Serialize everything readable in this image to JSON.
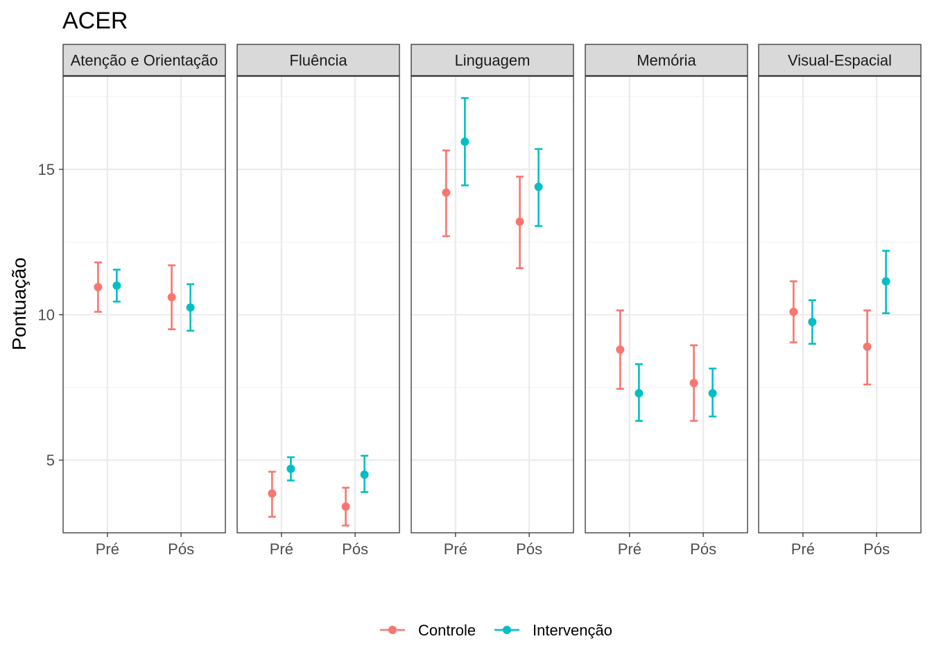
{
  "chart_data": {
    "type": "scatter",
    "subtype": "point-errorbar-facets",
    "title": "ACER",
    "xlabel": "",
    "ylabel": "Pontuação",
    "categories": [
      "Pré",
      "Pós"
    ],
    "ylim": [
      2.5,
      18.2
    ],
    "yticks": [
      5,
      10,
      15
    ],
    "grid": true,
    "legend_position": "bottom",
    "series_colors": {
      "Controle": "#F8766D",
      "Intervenção": "#00BFC4"
    },
    "legend": [
      "Controle",
      "Intervenção"
    ],
    "facets": [
      {
        "label": "Atenção e Orientação",
        "series": [
          {
            "name": "Controle",
            "points": [
              {
                "x": "Pré",
                "y": 10.95,
                "ymin": 10.1,
                "ymax": 11.8
              },
              {
                "x": "Pós",
                "y": 10.6,
                "ymin": 9.5,
                "ymax": 11.7
              }
            ]
          },
          {
            "name": "Intervenção",
            "points": [
              {
                "x": "Pré",
                "y": 11.0,
                "ymin": 10.45,
                "ymax": 11.55
              },
              {
                "x": "Pós",
                "y": 10.25,
                "ymin": 9.45,
                "ymax": 11.05
              }
            ]
          }
        ]
      },
      {
        "label": "Fluência",
        "series": [
          {
            "name": "Controle",
            "points": [
              {
                "x": "Pré",
                "y": 3.85,
                "ymin": 3.05,
                "ymax": 4.6
              },
              {
                "x": "Pós",
                "y": 3.4,
                "ymin": 2.75,
                "ymax": 4.05
              }
            ]
          },
          {
            "name": "Intervenção",
            "points": [
              {
                "x": "Pré",
                "y": 4.7,
                "ymin": 4.3,
                "ymax": 5.1
              },
              {
                "x": "Pós",
                "y": 4.5,
                "ymin": 3.9,
                "ymax": 5.15
              }
            ]
          }
        ]
      },
      {
        "label": "Linguagem",
        "series": [
          {
            "name": "Controle",
            "points": [
              {
                "x": "Pré",
                "y": 14.2,
                "ymin": 12.7,
                "ymax": 15.65
              },
              {
                "x": "Pós",
                "y": 13.2,
                "ymin": 11.6,
                "ymax": 14.75
              }
            ]
          },
          {
            "name": "Intervenção",
            "points": [
              {
                "x": "Pré",
                "y": 15.95,
                "ymin": 14.45,
                "ymax": 17.45
              },
              {
                "x": "Pós",
                "y": 14.4,
                "ymin": 13.05,
                "ymax": 15.7
              }
            ]
          }
        ]
      },
      {
        "label": "Memória",
        "series": [
          {
            "name": "Controle",
            "points": [
              {
                "x": "Pré",
                "y": 8.8,
                "ymin": 7.45,
                "ymax": 10.15
              },
              {
                "x": "Pós",
                "y": 7.65,
                "ymin": 6.35,
                "ymax": 8.95
              }
            ]
          },
          {
            "name": "Intervenção",
            "points": [
              {
                "x": "Pré",
                "y": 7.3,
                "ymin": 6.35,
                "ymax": 8.3
              },
              {
                "x": "Pós",
                "y": 7.3,
                "ymin": 6.5,
                "ymax": 8.15
              }
            ]
          }
        ]
      },
      {
        "label": "Visual-Espacial",
        "series": [
          {
            "name": "Controle",
            "points": [
              {
                "x": "Pré",
                "y": 10.1,
                "ymin": 9.05,
                "ymax": 11.15
              },
              {
                "x": "Pós",
                "y": 8.9,
                "ymin": 7.6,
                "ymax": 10.15
              }
            ]
          },
          {
            "name": "Intervenção",
            "points": [
              {
                "x": "Pré",
                "y": 9.75,
                "ymin": 9.0,
                "ymax": 10.5
              },
              {
                "x": "Pós",
                "y": 11.15,
                "ymin": 10.05,
                "ymax": 12.2
              }
            ]
          }
        ]
      }
    ]
  }
}
